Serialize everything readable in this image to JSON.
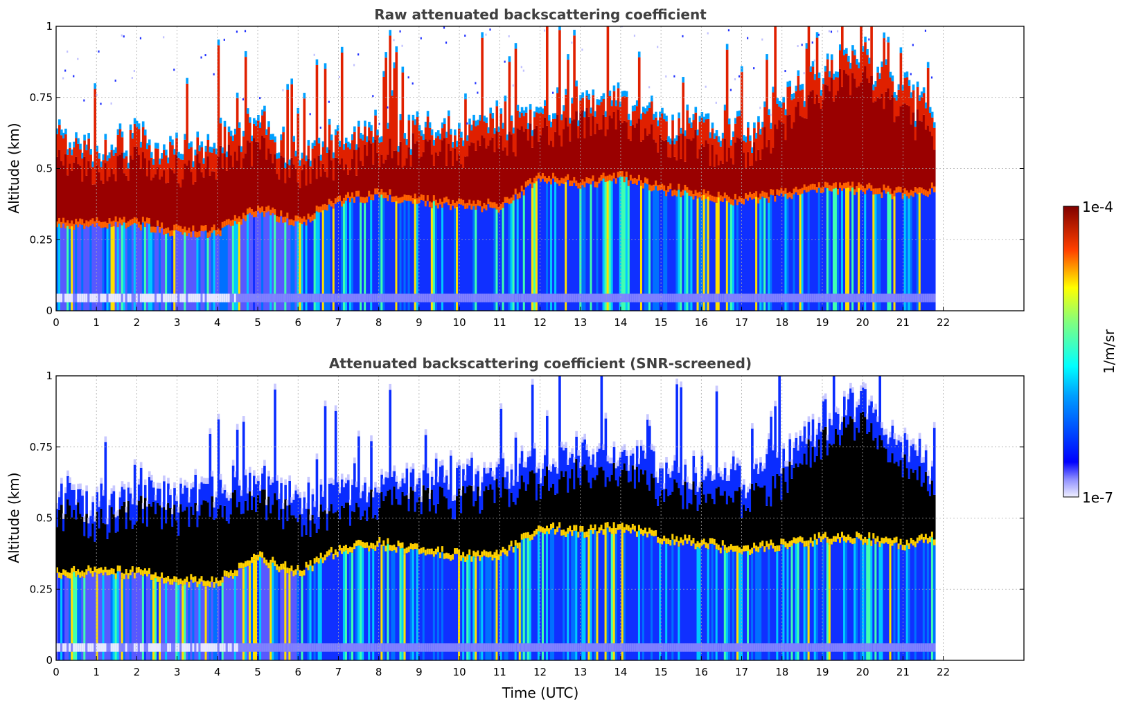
{
  "chart_data": [
    {
      "type": "heatmap",
      "title": "Raw attenuated backscattering coefficient",
      "xlabel": "",
      "ylabel": "Altitude (km)",
      "xlim": [
        0,
        24
      ],
      "ylim": [
        0,
        1
      ],
      "xticks": [
        "0",
        "1",
        "2",
        "3",
        "4",
        "5",
        "6",
        "7",
        "8",
        "9",
        "10",
        "11",
        "12",
        "13",
        "14",
        "15",
        "16",
        "17",
        "18",
        "19",
        "20",
        "21",
        "22"
      ],
      "yticks": [
        "0",
        "0.25",
        "0.5",
        "0.75",
        "1"
      ],
      "grid": true,
      "data_end_hour": 21.8,
      "snr_screened": false,
      "layer_top_km": [
        [
          0,
          0.55
        ],
        [
          1,
          0.5
        ],
        [
          2,
          0.55
        ],
        [
          3,
          0.52
        ],
        [
          4,
          0.55
        ],
        [
          5,
          0.6
        ],
        [
          6,
          0.5
        ],
        [
          7,
          0.55
        ],
        [
          8,
          0.58
        ],
        [
          9,
          0.6
        ],
        [
          10,
          0.58
        ],
        [
          11,
          0.62
        ],
        [
          12,
          0.65
        ],
        [
          13,
          0.68
        ],
        [
          14,
          0.7
        ],
        [
          15,
          0.62
        ],
        [
          16,
          0.6
        ],
        [
          17,
          0.58
        ],
        [
          18,
          0.65
        ],
        [
          19,
          0.8
        ],
        [
          20,
          0.85
        ],
        [
          21,
          0.7
        ],
        [
          21.8,
          0.65
        ]
      ],
      "layer_base_km": [
        [
          0,
          0.3
        ],
        [
          1,
          0.3
        ],
        [
          2,
          0.3
        ],
        [
          3,
          0.27
        ],
        [
          4,
          0.27
        ],
        [
          5,
          0.35
        ],
        [
          6,
          0.3
        ],
        [
          7,
          0.38
        ],
        [
          8,
          0.4
        ],
        [
          9,
          0.38
        ],
        [
          10,
          0.36
        ],
        [
          11,
          0.36
        ],
        [
          12,
          0.46
        ],
        [
          13,
          0.44
        ],
        [
          14,
          0.46
        ],
        [
          15,
          0.42
        ],
        [
          16,
          0.4
        ],
        [
          17,
          0.38
        ],
        [
          18,
          0.4
        ],
        [
          19,
          0.42
        ],
        [
          20,
          0.42
        ],
        [
          21,
          0.4
        ],
        [
          21.8,
          0.42
        ]
      ]
    },
    {
      "type": "heatmap",
      "title": "Attenuated backscattering coefficient (SNR-screened)",
      "xlabel": "Time (UTC)",
      "ylabel": "Altitude (km)",
      "xlim": [
        0,
        24
      ],
      "ylim": [
        0,
        1
      ],
      "xticks": [
        "0",
        "1",
        "2",
        "3",
        "4",
        "5",
        "6",
        "7",
        "8",
        "9",
        "10",
        "11",
        "12",
        "13",
        "14",
        "15",
        "16",
        "17",
        "18",
        "19",
        "20",
        "21",
        "22"
      ],
      "yticks": [
        "0",
        "0.25",
        "0.5",
        "0.75",
        "1"
      ],
      "grid": true,
      "data_end_hour": 21.8,
      "snr_screened": true,
      "layer_top_km": [
        [
          0,
          0.55
        ],
        [
          1,
          0.5
        ],
        [
          2,
          0.55
        ],
        [
          3,
          0.52
        ],
        [
          4,
          0.55
        ],
        [
          5,
          0.6
        ],
        [
          6,
          0.5
        ],
        [
          7,
          0.55
        ],
        [
          8,
          0.58
        ],
        [
          9,
          0.6
        ],
        [
          10,
          0.58
        ],
        [
          11,
          0.62
        ],
        [
          12,
          0.65
        ],
        [
          13,
          0.68
        ],
        [
          14,
          0.7
        ],
        [
          15,
          0.62
        ],
        [
          16,
          0.6
        ],
        [
          17,
          0.58
        ],
        [
          18,
          0.65
        ],
        [
          19,
          0.8
        ],
        [
          20,
          0.85
        ],
        [
          21,
          0.7
        ],
        [
          21.8,
          0.65
        ]
      ],
      "layer_base_km": [
        [
          0,
          0.3
        ],
        [
          1,
          0.3
        ],
        [
          2,
          0.3
        ],
        [
          3,
          0.27
        ],
        [
          4,
          0.27
        ],
        [
          5,
          0.35
        ],
        [
          6,
          0.3
        ],
        [
          7,
          0.38
        ],
        [
          8,
          0.4
        ],
        [
          9,
          0.38
        ],
        [
          10,
          0.36
        ],
        [
          11,
          0.36
        ],
        [
          12,
          0.46
        ],
        [
          13,
          0.44
        ],
        [
          14,
          0.46
        ],
        [
          15,
          0.42
        ],
        [
          16,
          0.4
        ],
        [
          17,
          0.38
        ],
        [
          18,
          0.4
        ],
        [
          19,
          0.42
        ],
        [
          20,
          0.42
        ],
        [
          21,
          0.4
        ],
        [
          21.8,
          0.42
        ]
      ]
    }
  ],
  "colorbar": {
    "max_label": "1e-4",
    "min_label": "1e-7",
    "unit_label": "1/m/sr",
    "scale": "log",
    "range": [
      1e-07,
      0.0001
    ],
    "colormap": "jet"
  }
}
